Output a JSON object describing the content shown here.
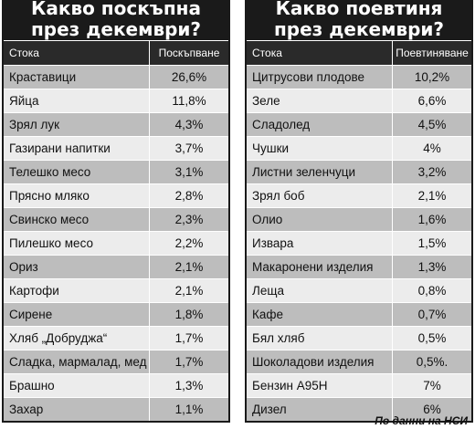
{
  "left": {
    "title_line1": "Какво поскъпна",
    "title_line2": "през декември?",
    "col_item": "Стока",
    "col_value": "Поскъпване",
    "rows": [
      {
        "name": "Краставици",
        "value": "26,6%"
      },
      {
        "name": "Яйца",
        "value": "11,8%"
      },
      {
        "name": "Зрял лук",
        "value": "4,3%"
      },
      {
        "name": "Газирани напитки",
        "value": "3,7%"
      },
      {
        "name": "Телешко месо",
        "value": "3,1%"
      },
      {
        "name": "Прясно мляко",
        "value": "2,8%"
      },
      {
        "name": "Свинско месо",
        "value": "2,3%"
      },
      {
        "name": "Пилешко месо",
        "value": "2,2%"
      },
      {
        "name": "Ориз",
        "value": "2,1%"
      },
      {
        "name": "Картофи",
        "value": "2,1%"
      },
      {
        "name": "Сирене",
        "value": "1,8%"
      },
      {
        "name": "Хляб „Добруджа“",
        "value": "1,7%"
      },
      {
        "name": "Сладка, мармалад, мед",
        "value": "1,7%"
      },
      {
        "name": "Брашно",
        "value": "1,3%"
      },
      {
        "name": "Захар",
        "value": "1,1%"
      }
    ]
  },
  "right": {
    "title_line1": "Какво поевтиня",
    "title_line2": "през декември?",
    "col_item": "Стока",
    "col_value": "Поевтиняване",
    "rows": [
      {
        "name": "Цитрусови плодове",
        "value": "10,2%"
      },
      {
        "name": "Зеле",
        "value": "6,6%"
      },
      {
        "name": "Сладолед",
        "value": "4,5%"
      },
      {
        "name": "Чушки",
        "value": "4%"
      },
      {
        "name": "Листни зеленчуци",
        "value": "3,2%"
      },
      {
        "name": "Зрял боб",
        "value": "2,1%"
      },
      {
        "name": "Олио",
        "value": "1,6%"
      },
      {
        "name": "Извара",
        "value": "1,5%"
      },
      {
        "name": "Макаронени изделия",
        "value": "1,3%"
      },
      {
        "name": "Леща",
        "value": "0,8%"
      },
      {
        "name": "Кафе",
        "value": "0,7%"
      },
      {
        "name": "Бял хляб",
        "value": "0,5%"
      },
      {
        "name": "Шоколадови изделия",
        "value": "0,5%."
      },
      {
        "name": "Бензин А95Н",
        "value": "7%"
      },
      {
        "name": "Дизел",
        "value": "6%"
      }
    ]
  },
  "source": "По данни на НСИ",
  "colors": {
    "header": "#1a1a1a",
    "shade": "#bdbdbd",
    "plain": "#ececec"
  }
}
